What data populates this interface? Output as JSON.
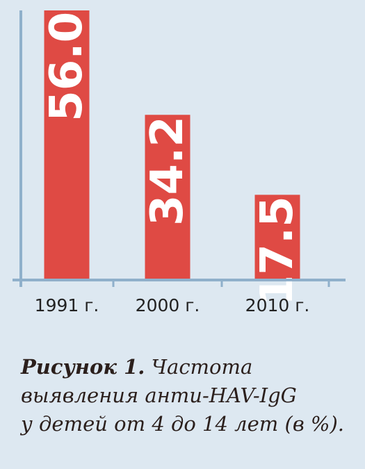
{
  "chart_data": {
    "type": "bar",
    "categories": [
      "1991 г.",
      "2000 г.",
      "2010 г."
    ],
    "values": [
      56.0,
      34.2,
      17.5
    ],
    "value_labels": [
      "56.0",
      "34.2",
      "17.5"
    ],
    "title": "",
    "xlabel": "",
    "ylabel": "",
    "ylim": [
      0,
      56
    ],
    "grid": false,
    "bar_color": "#df4a44",
    "axis_color": "#8fb0cb",
    "label_color": "#ffffff"
  },
  "caption": {
    "label": "Рисунок 1.",
    "line1": "Частота",
    "line2": "выявления анти-HAV-IgG",
    "line3": "у детей от 4 до 14 лет (в %)."
  }
}
